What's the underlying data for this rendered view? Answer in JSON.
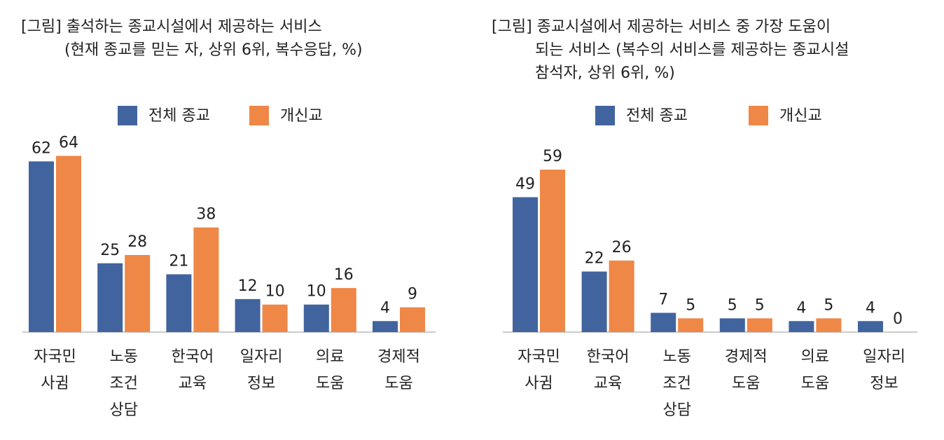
{
  "colors": {
    "all": "#41649F",
    "protestant": "#EF8747"
  },
  "chart_data": [
    {
      "type": "bar",
      "title_lines": [
        "[그림] 출석하는 종교시설에서 제공하는 서비스",
        "(현재 종교를 믿는 자, 상위 6위, 복수응답, %)"
      ],
      "legend": [
        "전체 종교",
        "개신교"
      ],
      "categories": [
        [
          "자국민",
          "사귐"
        ],
        [
          "노동",
          "조건",
          "상담"
        ],
        [
          "한국어",
          "교육"
        ],
        [
          "일자리",
          "정보"
        ],
        [
          "의료",
          "도움"
        ],
        [
          "경제적",
          "도움"
        ]
      ],
      "series": [
        {
          "name": "전체 종교",
          "values": [
            62,
            25,
            21,
            12,
            10,
            4
          ]
        },
        {
          "name": "개신교",
          "values": [
            64,
            28,
            38,
            10,
            16,
            9
          ]
        }
      ],
      "ylim": [
        0,
        70
      ]
    },
    {
      "type": "bar",
      "title_lines": [
        "[그림] 종교시설에서 제공하는 서비스 중 가장 도움이",
        "되는 서비스 (복수의 서비스를 제공하는 종교시설",
        "참석자, 상위 6위, %)"
      ],
      "legend": [
        "전체 종교",
        "개신교"
      ],
      "categories": [
        [
          "자국민",
          "사귐"
        ],
        [
          "한국어",
          "교육"
        ],
        [
          "노동",
          "조건",
          "상담"
        ],
        [
          "경제적",
          "도움"
        ],
        [
          "의료",
          "도움"
        ],
        [
          "일자리",
          "정보"
        ]
      ],
      "series": [
        {
          "name": "전체 종교",
          "values": [
            49,
            22,
            7,
            5,
            4,
            4
          ]
        },
        {
          "name": "개신교",
          "values": [
            59,
            26,
            5,
            5,
            5,
            0
          ]
        }
      ],
      "ylim": [
        0,
        70
      ]
    }
  ]
}
